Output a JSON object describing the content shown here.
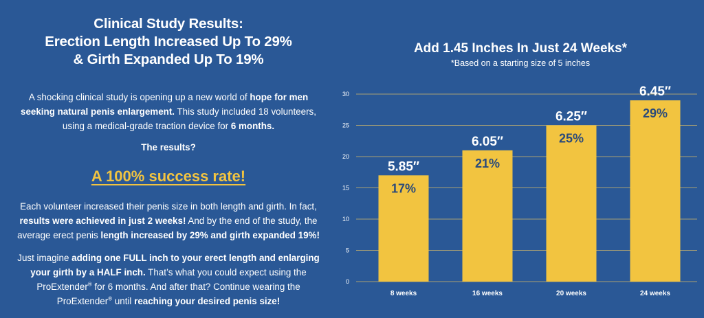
{
  "left": {
    "headline": [
      "Clinical Study Results:",
      "Erection Length Increased Up To 29%",
      "& Girth Expanded Up To 19%"
    ],
    "intro": {
      "t1": "A shocking clinical study is opening up a new world of ",
      "b1": "hope for men seeking natural penis enlargement.",
      "t2": " This study included 18 volunteers, using a medical-grade traction device for ",
      "b2": "6 months."
    },
    "results_question": "The results?",
    "success": "A 100% success rate!",
    "para2": {
      "t1": "Each volunteer increased their penis size in both length and girth. In fact, ",
      "b1": "results were achieved in just 2 weeks!",
      "t2": " And by the end of the study, the average erect penis ",
      "b2": "length increased by 29% and girth expanded 19%!"
    },
    "para3": {
      "t1": "Just imagine ",
      "b1": "adding one FULL inch to your erect length and enlarging your girth by a HALF inch.",
      "t2": " That’s what you could expect using the ProExtender",
      "sup1": "®",
      "t3": " for 6 months. And after that? Continue wearing the ProExtender",
      "sup2": "®",
      "t4": " until ",
      "b2": "reaching your desired penis size!"
    }
  },
  "chart_data": {
    "type": "bar",
    "title": "Add 1.45 Inches In Just 24 Weeks*",
    "subtitle": "*Based on a starting size of 5 inches",
    "categories": [
      "8 weeks",
      "16 weeks",
      "20 weeks",
      "24 weeks"
    ],
    "values": [
      17,
      21,
      25,
      29
    ],
    "value_labels": [
      "17%",
      "21%",
      "25%",
      "29%"
    ],
    "size_labels": [
      "5.85″",
      "6.05″",
      "6.25″",
      "6.45″"
    ],
    "yticks": [
      0,
      5,
      10,
      15,
      20,
      25,
      30
    ],
    "ylim": [
      0,
      30
    ],
    "grid": true,
    "colors": {
      "bar": "#f2c440",
      "grid": "#c9b36b",
      "background": "#2a5896"
    }
  }
}
